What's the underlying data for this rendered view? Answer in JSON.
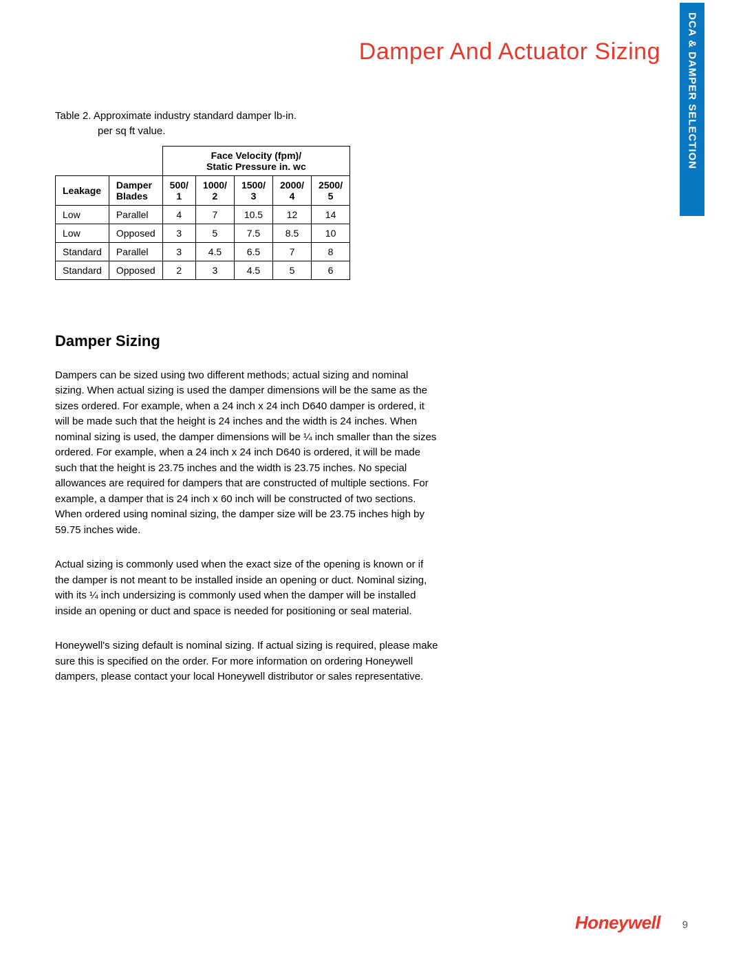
{
  "page_title": "Damper And Actuator Sizing",
  "side_tab": "DCA & DAMPER SELECTION",
  "table": {
    "caption_line1": "Table 2. Approximate industry standard damper lb-in.",
    "caption_line2": "per sq ft value.",
    "group_header": "Face Velocity (fpm)/\nStatic Pressure in. wc",
    "col_headers": [
      "Leakage",
      "Damper Blades",
      "500/ 1",
      "1000/ 2",
      "1500/ 3",
      "2000/ 4",
      "2500/ 5"
    ],
    "rows": [
      [
        "Low",
        "Parallel",
        "4",
        "7",
        "10.5",
        "12",
        "14"
      ],
      [
        "Low",
        "Opposed",
        "3",
        "5",
        "7.5",
        "8.5",
        "10"
      ],
      [
        "Standard",
        "Parallel",
        "3",
        "4.5",
        "6.5",
        "7",
        "8"
      ],
      [
        "Standard",
        "Opposed",
        "2",
        "3",
        "4.5",
        "5",
        "6"
      ]
    ]
  },
  "section_heading": "Damper Sizing",
  "paragraphs": [
    "Dampers can be sized using two different methods; actual sizing and nominal sizing. When actual sizing is used the damper dimensions will be the same as the sizes ordered. For example, when a 24 inch x 24 inch D640 damper is ordered, it will be made such that the height is 24 inches and the width is 24 inches. When nominal sizing is used, the damper dimensions will be ¼ inch smaller than the sizes ordered. For example, when a 24 inch x 24 inch D640 is ordered, it will be made such that the height is 23.75 inches and the width is 23.75 inches. No special allowances are required for dampers that are constructed of multiple sections. For example, a damper that is 24 inch x 60 inch will be constructed of two sections. When ordered using nominal sizing, the damper size will be 23.75 inches high by 59.75 inches wide.",
    "Actual sizing is commonly used when the exact size of the opening is known or if the damper is not meant to be installed inside an opening or duct. Nominal sizing, with its ¼ inch undersizing is commonly used when the damper will be installed inside an opening or duct and space is needed for positioning or seal material.",
    "Honeywell's sizing default is nominal sizing. If actual sizing is required, please make sure this is specified on the order. For more information on ordering Honeywell dampers, please contact your local Honeywell distributor or sales representative."
  ],
  "brand": "Honeywell",
  "page_number": "9",
  "colors": {
    "accent_red": "#e4392c",
    "tab_blue": "#0a77c2",
    "text": "#000000",
    "page_num": "#555555",
    "bg": "#ffffff"
  }
}
